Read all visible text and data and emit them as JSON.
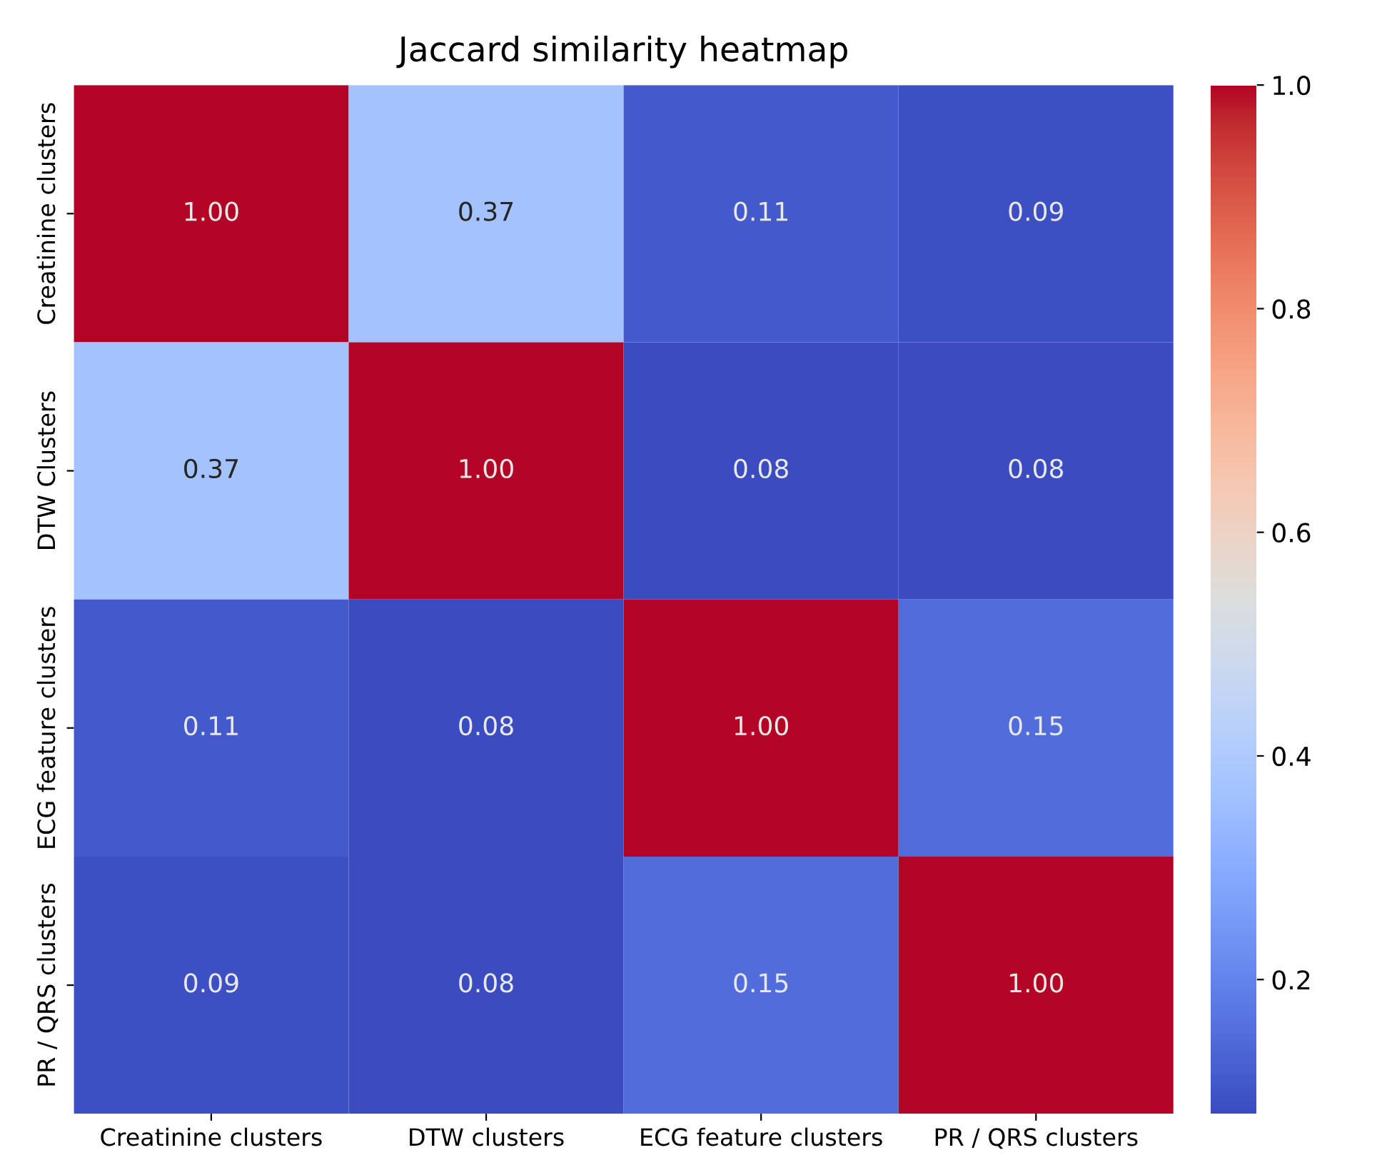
{
  "chart_data": {
    "type": "heatmap",
    "title": "Jaccard similarity heatmap",
    "categories": [
      "Creatinine clusters",
      "DTW clusters",
      "ECG feature clusters",
      "PR / QRS clusters"
    ],
    "y_categories": [
      "Creatinine clusters",
      "DTW Clusters",
      "ECG feature clusters",
      "PR / QRS clusters"
    ],
    "cells": [
      [
        1.0,
        0.37,
        0.11,
        0.09
      ],
      [
        0.37,
        1.0,
        0.08,
        0.08
      ],
      [
        0.11,
        0.08,
        1.0,
        0.15
      ],
      [
        0.09,
        0.08,
        0.15,
        1.0
      ]
    ],
    "cell_labels": [
      [
        "1.00",
        "0.37",
        "0.11",
        "0.09"
      ],
      [
        "0.37",
        "1.00",
        "0.08",
        "0.08"
      ],
      [
        "0.11",
        "0.08",
        "1.00",
        "0.15"
      ],
      [
        "0.09",
        "0.08",
        "0.15",
        "1.00"
      ]
    ],
    "clim": [
      0.08,
      1.0
    ],
    "cticks": [
      0.2,
      0.4,
      0.6,
      0.8,
      {
        "value": 1,
        "label": "1.0"
      }
    ]
  }
}
